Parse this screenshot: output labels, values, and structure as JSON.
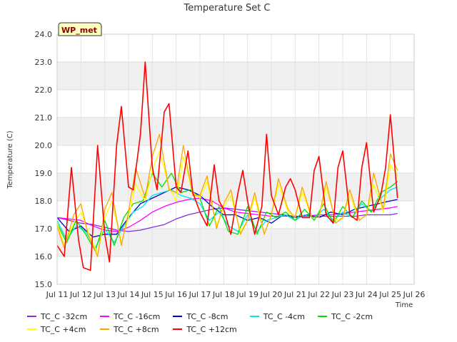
{
  "chart_data": {
    "type": "line",
    "title": "Temperature Set C",
    "xlabel": "Time",
    "ylabel": "Temperature (C)",
    "ylim": [
      15.0,
      24.0
    ],
    "xlim": [
      11,
      26
    ],
    "yticks": [
      "15.0",
      "16.0",
      "17.0",
      "18.0",
      "19.0",
      "20.0",
      "21.0",
      "22.0",
      "23.0",
      "24.0"
    ],
    "xticks": [
      "Jul 11",
      "Jul 12",
      "Jul 13",
      "Jul 14",
      "Jul 15",
      "Jul 16",
      "Jul 17",
      "Jul 18",
      "Jul 19",
      "Jul 20",
      "Jul 21",
      "Jul 22",
      "Jul 23",
      "Jul 24",
      "Jul 25",
      "Jul 26"
    ],
    "grid": true,
    "legend_position": "bottom",
    "site_badge": "WP_met",
    "series": [
      {
        "name": "TC_C -32cm",
        "color": "#8a2be2",
        "x": [
          11.0,
          11.5,
          12.0,
          12.5,
          13.0,
          13.5,
          14.0,
          14.5,
          15.0,
          15.5,
          16.0,
          16.5,
          17.0,
          17.5,
          18.0,
          18.5,
          19.0,
          19.5,
          20.0,
          20.5,
          21.0,
          21.5,
          22.0,
          22.5,
          23.0,
          23.5,
          24.0,
          24.5,
          25.0,
          25.3
        ],
        "y": [
          17.4,
          17.3,
          17.2,
          17.15,
          17.05,
          16.95,
          16.9,
          16.95,
          17.05,
          17.15,
          17.35,
          17.5,
          17.6,
          17.7,
          17.75,
          17.7,
          17.65,
          17.6,
          17.55,
          17.5,
          17.45,
          17.45,
          17.45,
          17.45,
          17.45,
          17.45,
          17.5,
          17.5,
          17.5,
          17.55
        ]
      },
      {
        "name": "TC_C -16cm",
        "color": "#ff00ff",
        "x": [
          11.0,
          11.5,
          12.0,
          12.5,
          13.0,
          13.5,
          14.0,
          14.5,
          15.0,
          15.5,
          16.0,
          16.5,
          17.0,
          17.5,
          18.0,
          18.5,
          19.0,
          19.5,
          20.0,
          20.5,
          21.0,
          21.5,
          22.0,
          22.5,
          23.0,
          23.5,
          24.0,
          24.5,
          25.0,
          25.3
        ],
        "y": [
          17.4,
          17.35,
          17.3,
          17.1,
          16.95,
          16.9,
          17.05,
          17.3,
          17.6,
          17.8,
          17.95,
          18.05,
          18.1,
          18.0,
          17.75,
          17.6,
          17.55,
          17.5,
          17.45,
          17.45,
          17.45,
          17.45,
          17.5,
          17.5,
          17.55,
          17.6,
          17.65,
          17.7,
          17.75,
          17.8
        ]
      },
      {
        "name": "TC_C -8cm",
        "color": "#0000cd",
        "x": [
          11.0,
          11.5,
          12.0,
          12.5,
          13.0,
          13.5,
          14.0,
          14.5,
          15.0,
          15.5,
          16.0,
          16.5,
          17.0,
          17.5,
          18.0,
          18.5,
          19.0,
          19.5,
          20.0,
          20.5,
          21.0,
          21.5,
          22.0,
          22.5,
          23.0,
          23.5,
          24.0,
          24.5,
          25.0,
          25.3
        ],
        "y": [
          17.4,
          16.9,
          17.1,
          16.7,
          16.8,
          16.8,
          17.4,
          17.9,
          18.1,
          18.3,
          18.5,
          18.4,
          18.2,
          17.8,
          17.5,
          17.5,
          17.3,
          17.4,
          17.2,
          17.5,
          17.4,
          17.5,
          17.4,
          17.6,
          17.5,
          17.7,
          17.8,
          17.9,
          18.0,
          18.05
        ]
      },
      {
        "name": "TC_C -4cm",
        "color": "#00e5ee",
        "x": [
          11.0,
          11.4,
          11.8,
          12.2,
          12.6,
          13.0,
          13.4,
          13.8,
          14.2,
          14.6,
          15.0,
          15.4,
          15.8,
          16.2,
          16.6,
          17.0,
          17.4,
          17.8,
          18.2,
          18.6,
          19.0,
          19.4,
          19.8,
          20.2,
          20.6,
          21.0,
          21.4,
          21.8,
          22.2,
          22.6,
          23.0,
          23.4,
          23.8,
          24.2,
          24.6,
          25.0,
          25.3
        ],
        "y": [
          17.3,
          16.6,
          17.1,
          16.9,
          16.3,
          17.0,
          16.5,
          17.1,
          17.6,
          17.8,
          18.2,
          18.3,
          18.4,
          18.2,
          18.1,
          17.9,
          17.3,
          17.6,
          17.1,
          16.9,
          17.5,
          16.9,
          17.3,
          17.4,
          17.5,
          17.3,
          17.5,
          17.4,
          17.7,
          17.3,
          17.6,
          17.4,
          17.9,
          17.6,
          18.1,
          18.4,
          18.5
        ]
      },
      {
        "name": "TC_C -2cm",
        "color": "#00e000",
        "x": [
          11.0,
          11.4,
          11.8,
          12.2,
          12.6,
          13.0,
          13.4,
          13.8,
          14.2,
          14.6,
          15.0,
          15.4,
          15.8,
          16.2,
          16.6,
          17.0,
          17.4,
          17.8,
          18.2,
          18.6,
          19.0,
          19.4,
          19.8,
          20.2,
          20.6,
          21.0,
          21.4,
          21.8,
          22.2,
          22.6,
          23.0,
          23.4,
          23.8,
          24.2,
          24.6,
          25.0,
          25.3
        ],
        "y": [
          17.2,
          16.5,
          17.3,
          16.8,
          16.2,
          17.3,
          16.4,
          17.4,
          17.9,
          18.0,
          19.0,
          18.5,
          19.0,
          18.3,
          18.4,
          18.1,
          17.1,
          17.8,
          16.9,
          16.8,
          17.8,
          16.8,
          17.6,
          17.4,
          17.6,
          17.3,
          17.7,
          17.3,
          17.9,
          17.2,
          17.8,
          17.4,
          18.0,
          17.6,
          18.3,
          18.5,
          18.7
        ]
      },
      {
        "name": "TC_C +4cm",
        "color": "#ffff00",
        "x": [
          11.0,
          11.3,
          11.7,
          12.0,
          12.3,
          12.7,
          13.0,
          13.3,
          13.7,
          14.0,
          14.3,
          14.7,
          15.0,
          15.3,
          15.7,
          16.0,
          16.3,
          16.7,
          17.0,
          17.3,
          17.7,
          18.0,
          18.3,
          18.7,
          19.0,
          19.3,
          19.7,
          20.0,
          20.3,
          20.7,
          21.0,
          21.3,
          21.7,
          22.0,
          22.3,
          22.7,
          23.0,
          23.3,
          23.7,
          24.0,
          24.3,
          24.7,
          25.0,
          25.3
        ],
        "y": [
          17.2,
          16.4,
          17.2,
          17.6,
          16.9,
          16.1,
          17.4,
          18.0,
          16.5,
          17.4,
          18.6,
          18.0,
          19.1,
          19.8,
          18.5,
          18.0,
          19.6,
          18.3,
          18.1,
          18.7,
          17.1,
          17.8,
          18.2,
          16.9,
          17.3,
          18.1,
          16.8,
          17.5,
          18.6,
          17.6,
          17.4,
          18.3,
          17.4,
          17.4,
          18.5,
          17.3,
          17.4,
          18.2,
          17.3,
          17.5,
          18.6,
          17.6,
          19.3,
          18.9
        ]
      },
      {
        "name": "TC_C +8cm",
        "color": "#ffa500",
        "x": [
          11.0,
          11.3,
          11.7,
          12.0,
          12.3,
          12.7,
          13.0,
          13.3,
          13.7,
          14.0,
          14.3,
          14.7,
          15.0,
          15.3,
          15.7,
          16.0,
          16.3,
          16.7,
          17.0,
          17.3,
          17.7,
          18.0,
          18.3,
          18.7,
          19.0,
          19.3,
          19.7,
          20.0,
          20.3,
          20.7,
          21.0,
          21.3,
          21.7,
          22.0,
          22.3,
          22.7,
          23.0,
          23.3,
          23.7,
          24.0,
          24.3,
          24.7,
          25.0,
          25.3
        ],
        "y": [
          17.1,
          16.3,
          17.5,
          17.9,
          16.8,
          16.0,
          17.7,
          18.3,
          16.4,
          17.6,
          19.2,
          18.1,
          19.6,
          20.4,
          18.4,
          18.3,
          20.0,
          18.2,
          18.2,
          18.9,
          17.0,
          17.9,
          18.4,
          16.8,
          17.3,
          18.3,
          16.8,
          17.5,
          18.8,
          17.7,
          17.4,
          18.5,
          17.4,
          17.4,
          18.7,
          17.2,
          17.4,
          18.4,
          17.3,
          17.5,
          19.0,
          17.7,
          19.7,
          19.1
        ]
      },
      {
        "name": "TC_C +12cm",
        "color": "#ff0000",
        "x": [
          11.0,
          11.3,
          11.6,
          11.9,
          12.1,
          12.4,
          12.7,
          13.0,
          13.2,
          13.5,
          13.7,
          14.0,
          14.2,
          14.5,
          14.7,
          15.0,
          15.2,
          15.5,
          15.7,
          16.0,
          16.2,
          16.5,
          16.7,
          17.0,
          17.3,
          17.6,
          17.8,
          18.0,
          18.3,
          18.6,
          18.8,
          19.0,
          19.3,
          19.6,
          19.8,
          20.0,
          20.3,
          20.6,
          20.8,
          21.0,
          21.3,
          21.6,
          21.8,
          22.0,
          22.3,
          22.6,
          22.8,
          23.0,
          23.3,
          23.6,
          23.8,
          24.0,
          24.3,
          24.6,
          24.8,
          25.0,
          25.3
        ],
        "y": [
          16.4,
          16.0,
          19.2,
          16.6,
          15.6,
          15.5,
          20.0,
          16.8,
          15.8,
          20.0,
          21.4,
          18.5,
          18.4,
          20.4,
          23.0,
          19.2,
          18.4,
          21.2,
          21.5,
          18.5,
          18.3,
          19.8,
          18.3,
          17.6,
          17.1,
          19.3,
          18.0,
          17.7,
          16.8,
          18.3,
          19.1,
          18.0,
          16.8,
          17.8,
          20.4,
          18.2,
          17.5,
          18.5,
          18.8,
          18.4,
          17.4,
          17.4,
          19.1,
          19.6,
          17.5,
          17.2,
          19.2,
          19.8,
          17.5,
          17.3,
          19.2,
          20.1,
          17.6,
          18.2,
          19.2,
          21.1,
          18.1
        ]
      }
    ]
  }
}
